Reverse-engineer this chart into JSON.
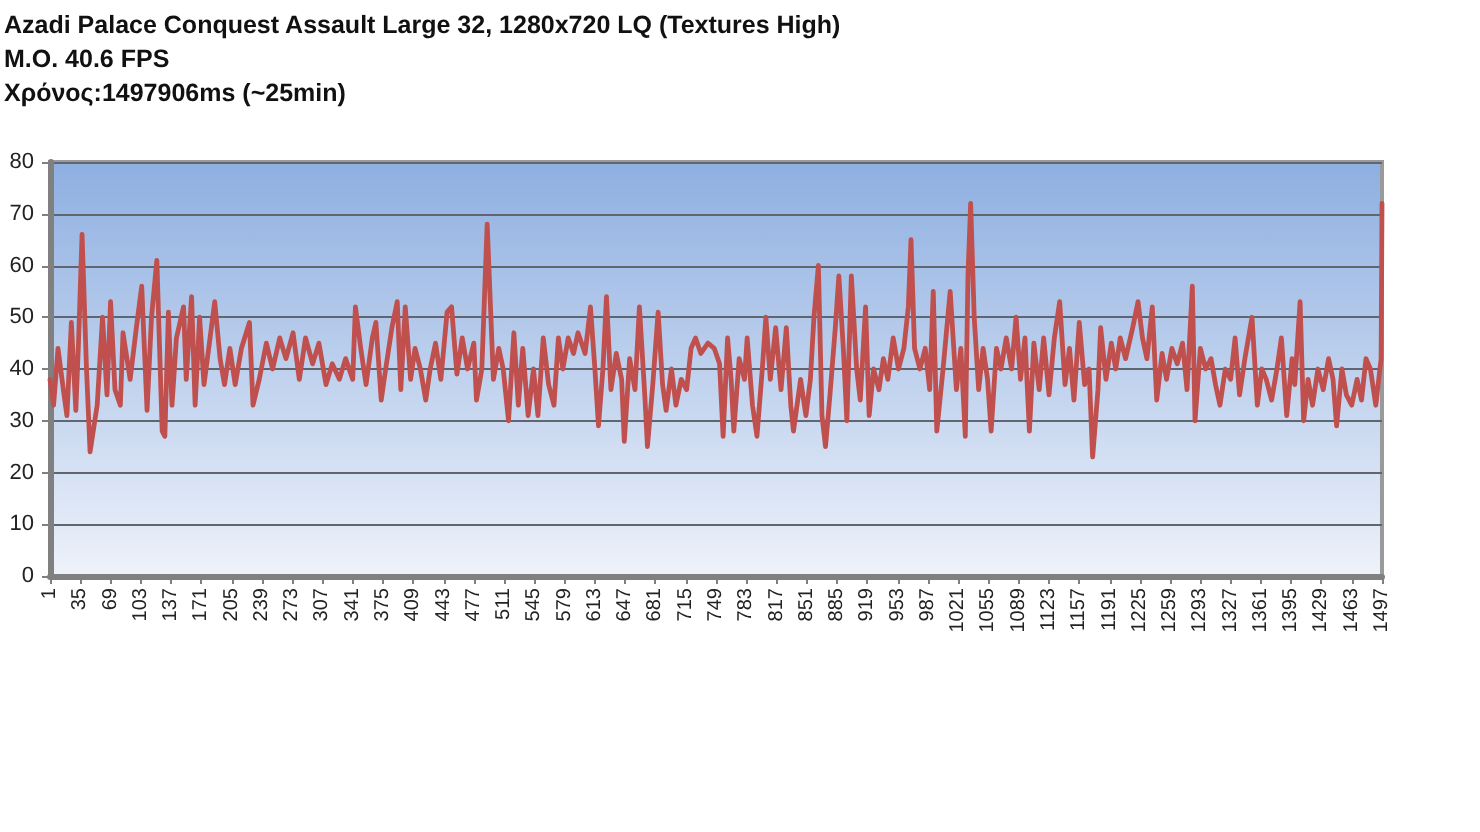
{
  "chart_data": {
    "type": "line",
    "title": "Azadi Palace Conquest Assault Large 32, 1280x720 LQ (Textures High)",
    "subtitle": "M.O. 40.6 FPS",
    "annotations": [
      "Χρόνος:1497906ms (~25min)"
    ],
    "x": [
      1,
      5,
      10,
      16,
      20,
      25,
      30,
      33,
      37,
      42,
      46,
      54,
      60,
      65,
      69,
      74,
      80,
      83,
      91,
      98,
      104,
      110,
      115,
      121,
      127,
      130,
      134,
      138,
      143,
      151,
      154,
      160,
      164,
      169,
      174,
      180,
      186,
      192,
      197,
      203,
      209,
      216,
      225,
      229,
      236,
      244,
      251,
      259,
      266,
      274,
      281,
      288,
      296,
      303,
      311,
      318,
      326,
      333,
      341,
      344,
      350,
      356,
      363,
      367,
      373,
      378,
      385,
      391,
      395,
      400,
      406,
      411,
      417,
      423,
      428,
      434,
      440,
      447,
      452,
      458,
      464,
      470,
      477,
      480,
      486,
      492,
      499,
      505,
      510,
      516,
      522,
      527,
      532,
      538,
      544,
      549,
      555,
      561,
      567,
      572,
      577,
      583,
      589,
      594,
      602,
      608,
      613,
      617,
      622,
      626,
      631,
      637,
      643,
      646,
      652,
      658,
      663,
      669,
      672,
      678,
      684,
      689,
      693,
      699,
      704,
      710,
      716,
      721,
      726,
      732,
      740,
      747,
      753,
      757,
      762,
      766,
      769,
      775,
      781,
      784,
      790,
      795,
      801,
      805,
      810,
      816,
      822,
      828,
      833,
      836,
      844,
      850,
      855,
      859,
      864,
      868,
      872,
      877,
      883,
      887,
      892,
      896,
      901,
      907,
      911,
      917,
      921,
      926,
      932,
      937,
      942,
      948,
      954,
      960,
      965,
      968,
      972,
      978,
      984,
      989,
      993,
      997,
      1004,
      1012,
      1019,
      1024,
      1029,
      1032,
      1035,
      1039,
      1044,
      1049,
      1054,
      1058,
      1064,
      1069,
      1075,
      1081,
      1086,
      1091,
      1096,
      1101,
      1106,
      1112,
      1117,
      1123,
      1129,
      1135,
      1141,
      1146,
      1151,
      1157,
      1163,
      1168,
      1172,
      1178,
      1181,
      1187,
      1193,
      1198,
      1203,
      1209,
      1217,
      1223,
      1228,
      1233,
      1239,
      1244,
      1250,
      1255,
      1261,
      1267,
      1273,
      1278,
      1284,
      1287,
      1293,
      1299,
      1305,
      1310,
      1315,
      1321,
      1327,
      1332,
      1337,
      1343,
      1351,
      1357,
      1362,
      1367,
      1373,
      1379,
      1384,
      1390,
      1396,
      1399,
      1405,
      1409,
      1414,
      1419,
      1425,
      1431,
      1437,
      1442,
      1446,
      1452,
      1457,
      1463,
      1469,
      1474,
      1479,
      1484,
      1490,
      1496,
      1497
    ],
    "values": [
      38,
      33,
      44,
      36,
      31,
      49,
      32,
      45,
      66,
      40,
      24,
      33,
      50,
      35,
      53,
      36,
      33,
      47,
      38,
      48,
      56,
      32,
      50,
      61,
      28,
      27,
      51,
      33,
      46,
      52,
      38,
      54,
      33,
      50,
      37,
      45,
      53,
      42,
      37,
      44,
      37,
      44,
      49,
      33,
      38,
      45,
      40,
      46,
      42,
      47,
      38,
      46,
      41,
      45,
      37,
      41,
      38,
      42,
      38,
      52,
      44,
      37,
      46,
      49,
      34,
      40,
      48,
      53,
      36,
      52,
      38,
      44,
      40,
      34,
      40,
      45,
      38,
      51,
      52,
      39,
      46,
      40,
      45,
      34,
      40,
      68,
      38,
      44,
      40,
      30,
      47,
      33,
      44,
      31,
      40,
      31,
      46,
      37,
      33,
      46,
      40,
      46,
      43,
      47,
      43,
      52,
      40,
      29,
      40,
      54,
      36,
      43,
      38,
      26,
      42,
      36,
      52,
      35,
      25,
      37,
      51,
      37,
      32,
      40,
      33,
      38,
      36,
      44,
      46,
      43,
      45,
      44,
      41,
      27,
      46,
      38,
      28,
      42,
      38,
      46,
      33,
      27,
      40,
      50,
      38,
      48,
      36,
      48,
      33,
      28,
      38,
      31,
      38,
      50,
      60,
      31,
      25,
      35,
      48,
      58,
      44,
      30,
      58,
      40,
      34,
      52,
      31,
      40,
      36,
      42,
      38,
      46,
      40,
      44,
      52,
      65,
      44,
      40,
      44,
      36,
      55,
      28,
      40,
      55,
      36,
      44,
      27,
      58,
      72,
      50,
      36,
      44,
      38,
      28,
      44,
      40,
      46,
      40,
      50,
      38,
      46,
      28,
      45,
      36,
      46,
      35,
      46,
      53,
      37,
      44,
      34,
      49,
      37,
      40,
      23,
      36,
      48,
      38,
      45,
      40,
      46,
      42,
      48,
      53,
      46,
      42,
      52,
      34,
      43,
      38,
      44,
      41,
      45,
      36,
      56,
      30,
      44,
      40,
      42,
      37,
      33,
      40,
      38,
      46,
      35,
      42,
      50,
      33,
      40,
      38,
      34,
      40,
      46,
      31,
      42,
      37,
      53,
      30,
      38,
      33,
      40,
      36,
      42,
      38,
      29,
      40,
      35,
      33,
      38,
      34,
      42,
      40,
      33,
      42,
      72
    ],
    "color": "#c0504d",
    "xlim": [
      1,
      1497
    ],
    "xticks": [
      1,
      35,
      69,
      103,
      137,
      171,
      205,
      239,
      273,
      307,
      341,
      375,
      409,
      443,
      477,
      511,
      545,
      579,
      613,
      647,
      681,
      715,
      749,
      783,
      817,
      851,
      885,
      919,
      953,
      987,
      1021,
      1055,
      1089,
      1123,
      1157,
      1191,
      1225,
      1259,
      1293,
      1327,
      1361,
      1395,
      1429,
      1463,
      1497
    ],
    "ylim": [
      0,
      80
    ],
    "yticks": [
      0,
      10,
      20,
      30,
      40,
      50,
      60,
      70,
      80
    ],
    "grid": "y",
    "marker": "none",
    "line_style": "solid"
  }
}
